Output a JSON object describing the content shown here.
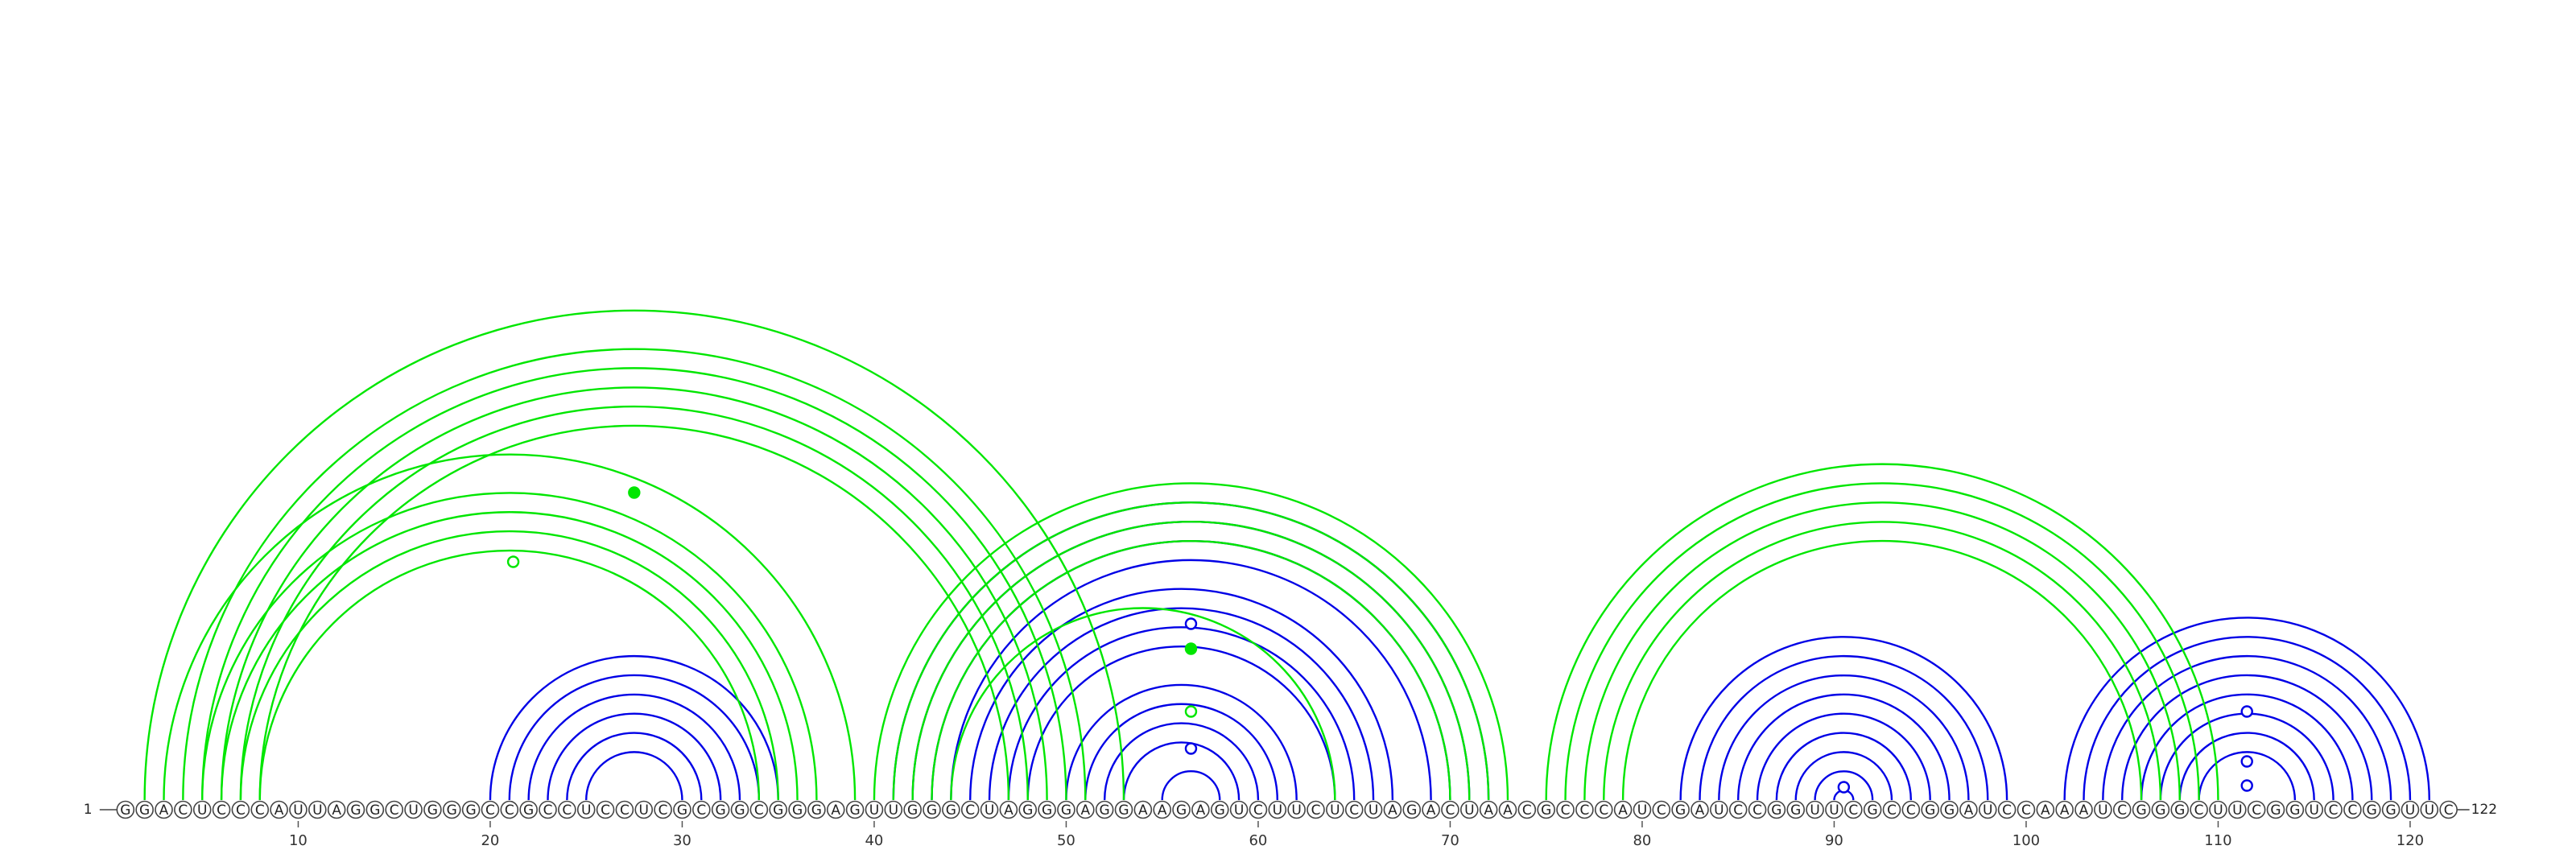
{
  "diagram": {
    "type": "rna-arc-diagram",
    "sequence": "GGACUCCCAUUAGGCUGGGCCGCCUCCUCGCGGCGGGAGUUGGGCUAGGGAGGAAGAGUCUUCUCUAGACUAACGCCCAUCGAUCCGGUUCGCCGGAUCCAAAUCGGGCUUCGGUCCGGUUC",
    "start_label": "1",
    "end_label": "122",
    "tick_positions": [
      10,
      20,
      30,
      40,
      50,
      60,
      70,
      80,
      90,
      100,
      110,
      120
    ],
    "tick_labels": [
      "10",
      "20",
      "30",
      "40",
      "50",
      "60",
      "70",
      "80",
      "90",
      "100",
      "110",
      "120"
    ],
    "colors": {
      "blue_arcs": "#0000e6",
      "green_arcs": "#00e600",
      "nucleotide_outline": "#444444",
      "background": "#ffffff"
    },
    "blue_helices": [
      {
        "i": 20,
        "j": 35,
        "length": 6
      },
      {
        "i": 41,
        "j": 72,
        "length": 4
      },
      {
        "i": 45,
        "j": 67,
        "length": 4
      },
      {
        "i": 50,
        "j": 62,
        "length": 4
      },
      {
        "i": 55,
        "j": 58,
        "length": 1
      },
      {
        "i": 82,
        "j": 99,
        "length": 9
      },
      {
        "i": 102,
        "j": 121,
        "length": 8
      }
    ],
    "green_helices": [
      {
        "i": 2,
        "j": 53,
        "length": 1
      },
      {
        "i": 3,
        "j": 39,
        "length": 1
      },
      {
        "i": 4,
        "j": 51,
        "length": 5
      },
      {
        "i": 5,
        "j": 37,
        "length": 4
      },
      {
        "i": 40,
        "j": 73,
        "length": 4
      },
      {
        "i": 44,
        "j": 64,
        "length": 1
      },
      {
        "i": 75,
        "j": 110,
        "length": 5
      }
    ],
    "markers": [
      {
        "position": 27.5,
        "kind": "filled",
        "color": "green"
      },
      {
        "position": 21.2,
        "kind": "open",
        "color": "green"
      },
      {
        "position": 56.5,
        "kind": "open",
        "color": "blue"
      },
      {
        "position": 56.5,
        "kind": "filled",
        "color": "green"
      },
      {
        "position": 56.5,
        "kind": "open",
        "color": "green"
      },
      {
        "position": 56.5,
        "kind": "open",
        "color": "blue"
      },
      {
        "position": 90.5,
        "kind": "open",
        "color": "blue"
      },
      {
        "position": 111.5,
        "kind": "open",
        "color": "blue"
      },
      {
        "position": 111.5,
        "kind": "open",
        "color": "blue"
      },
      {
        "position": 111.5,
        "kind": "open",
        "color": "blue"
      }
    ]
  }
}
